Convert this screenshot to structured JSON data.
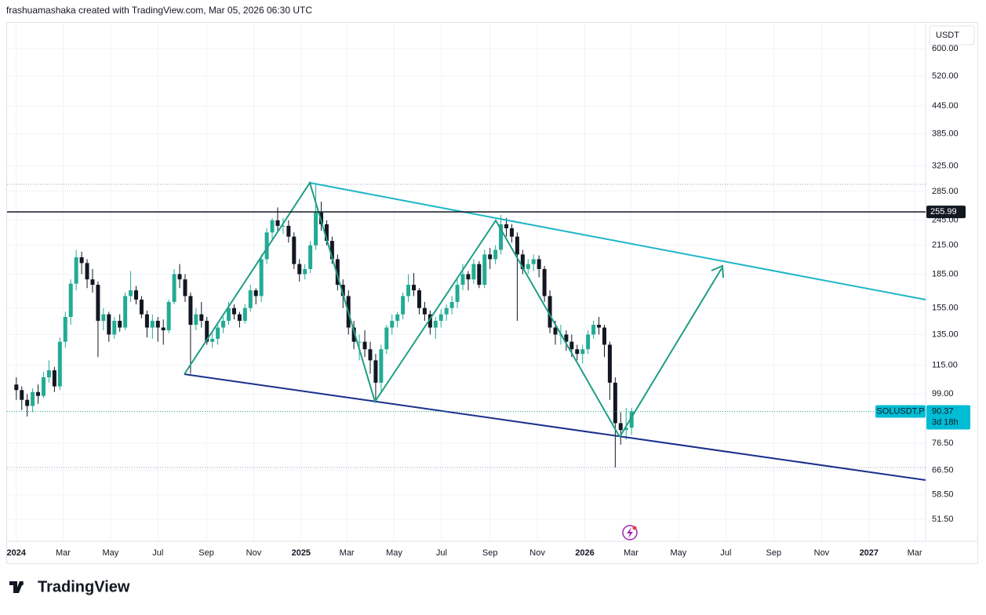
{
  "header": "frashuamashaka created with TradingView.com, Mar 05, 2026 06:30 UTC",
  "footer": "TradingView",
  "chart_data": {
    "type": "candlestick",
    "currency": "USDT",
    "symbol": "SOLUSDT.P",
    "last_price": 90.37,
    "countdown": "3d 18h",
    "price_line": 255.99,
    "up_color": "#22ab94",
    "down_color": "#131722",
    "log_scale": true,
    "grid": true,
    "ylim": [
      45.9,
      684
    ],
    "yticks": [
      {
        "value": 600,
        "label": "600.00"
      },
      {
        "value": 520,
        "label": "520.00"
      },
      {
        "value": 445,
        "label": "445.00"
      },
      {
        "value": 385,
        "label": "385.00"
      },
      {
        "value": 325,
        "label": "325.00"
      },
      {
        "value": 285,
        "label": "285.00"
      },
      {
        "value": 245,
        "label": "245.00"
      },
      {
        "value": 215,
        "label": "215.00"
      },
      {
        "value": 185,
        "label": "185.00"
      },
      {
        "value": 155,
        "label": "155.00"
      },
      {
        "value": 135,
        "label": "135.00"
      },
      {
        "value": 115,
        "label": "115.00"
      },
      {
        "value": 99,
        "label": "99.00"
      },
      {
        "value": 76.5,
        "label": "76.50"
      },
      {
        "value": 66.5,
        "label": "66.50"
      },
      {
        "value": 58.5,
        "label": "58.50"
      },
      {
        "value": 51.5,
        "label": "51.50"
      }
    ],
    "xlim": [
      -1.7,
      167
    ],
    "xticks": [
      {
        "value": 0,
        "label": "2024"
      },
      {
        "value": 8.6,
        "label": "Mar"
      },
      {
        "value": 17.3,
        "label": "May"
      },
      {
        "value": 26,
        "label": "Jul"
      },
      {
        "value": 34.9,
        "label": "Sep"
      },
      {
        "value": 43.6,
        "label": "Nov"
      },
      {
        "value": 52.3,
        "label": "2025"
      },
      {
        "value": 60.7,
        "label": "Mar"
      },
      {
        "value": 69.4,
        "label": "May"
      },
      {
        "value": 78.1,
        "label": "Jul"
      },
      {
        "value": 87,
        "label": "Sep"
      },
      {
        "value": 95.7,
        "label": "Nov"
      },
      {
        "value": 104.4,
        "label": "2026"
      },
      {
        "value": 112.9,
        "label": "Mar"
      },
      {
        "value": 121.6,
        "label": "May"
      },
      {
        "value": 130.3,
        "label": "Jul"
      },
      {
        "value": 139.1,
        "label": "Sep"
      },
      {
        "value": 147.9,
        "label": "Nov"
      },
      {
        "value": 156.6,
        "label": "2027"
      },
      {
        "value": 165,
        "label": "Mar"
      }
    ],
    "ohlc": [
      [
        104,
        108,
        96,
        101
      ],
      [
        101,
        103,
        91,
        96
      ],
      [
        96,
        99,
        88,
        93
      ],
      [
        93,
        102,
        90,
        100
      ],
      [
        100,
        104,
        94,
        98
      ],
      [
        98,
        111,
        97,
        108
      ],
      [
        108,
        118,
        105,
        112
      ],
      [
        112,
        114,
        100,
        103
      ],
      [
        103,
        133,
        101,
        130
      ],
      [
        130,
        152,
        126,
        148
      ],
      [
        148,
        180,
        142,
        176
      ],
      [
        176,
        210,
        170,
        202
      ],
      [
        202,
        208,
        185,
        196
      ],
      [
        196,
        200,
        172,
        180
      ],
      [
        180,
        190,
        168,
        175
      ],
      [
        175,
        178,
        120,
        145
      ],
      [
        145,
        155,
        138,
        150
      ],
      [
        150,
        152,
        130,
        135
      ],
      [
        135,
        148,
        132,
        145
      ],
      [
        145,
        150,
        137,
        140
      ],
      [
        140,
        168,
        138,
        165
      ],
      [
        165,
        188,
        160,
        170
      ],
      [
        170,
        174,
        158,
        162
      ],
      [
        162,
        165,
        147,
        150
      ],
      [
        150,
        153,
        133,
        140
      ],
      [
        140,
        150,
        132,
        145
      ],
      [
        145,
        148,
        130,
        140
      ],
      [
        140,
        146,
        128,
        138
      ],
      [
        138,
        162,
        136,
        160
      ],
      [
        160,
        190,
        158,
        185
      ],
      [
        185,
        195,
        172,
        180
      ],
      [
        180,
        185,
        160,
        165
      ],
      [
        165,
        168,
        110,
        142
      ],
      [
        142,
        155,
        138,
        150
      ],
      [
        150,
        160,
        140,
        145
      ],
      [
        145,
        148,
        128,
        130
      ],
      [
        130,
        136,
        126,
        132
      ],
      [
        132,
        142,
        128,
        140
      ],
      [
        140,
        148,
        136,
        145
      ],
      [
        145,
        160,
        142,
        155
      ],
      [
        155,
        158,
        146,
        150
      ],
      [
        150,
        152,
        140,
        145
      ],
      [
        145,
        158,
        143,
        155
      ],
      [
        155,
        175,
        152,
        170
      ],
      [
        170,
        172,
        158,
        165
      ],
      [
        165,
        205,
        160,
        200
      ],
      [
        200,
        235,
        195,
        230
      ],
      [
        230,
        248,
        220,
        245
      ],
      [
        245,
        262,
        232,
        238
      ],
      [
        238,
        248,
        228,
        238
      ],
      [
        238,
        245,
        218,
        225
      ],
      [
        225,
        230,
        190,
        195
      ],
      [
        195,
        200,
        178,
        185
      ],
      [
        185,
        195,
        180,
        190
      ],
      [
        190,
        220,
        186,
        215
      ],
      [
        215,
        295,
        210,
        255
      ],
      [
        255,
        270,
        232,
        240
      ],
      [
        240,
        245,
        215,
        220
      ],
      [
        220,
        225,
        195,
        200
      ],
      [
        200,
        205,
        170,
        175
      ],
      [
        175,
        180,
        155,
        165
      ],
      [
        165,
        170,
        135,
        140
      ],
      [
        140,
        145,
        125,
        130
      ],
      [
        130,
        135,
        118,
        130
      ],
      [
        130,
        138,
        120,
        125
      ],
      [
        125,
        130,
        110,
        118
      ],
      [
        118,
        122,
        96,
        105
      ],
      [
        105,
        128,
        100,
        125
      ],
      [
        125,
        142,
        122,
        140
      ],
      [
        140,
        150,
        135,
        145
      ],
      [
        145,
        152,
        140,
        150
      ],
      [
        150,
        168,
        146,
        165
      ],
      [
        165,
        185,
        160,
        175
      ],
      [
        175,
        186,
        165,
        170
      ],
      [
        170,
        172,
        150,
        155
      ],
      [
        155,
        160,
        145,
        150
      ],
      [
        150,
        153,
        135,
        140
      ],
      [
        140,
        148,
        132,
        145
      ],
      [
        145,
        154,
        140,
        150
      ],
      [
        150,
        158,
        145,
        155
      ],
      [
        155,
        165,
        150,
        160
      ],
      [
        160,
        180,
        155,
        175
      ],
      [
        175,
        195,
        170,
        185
      ],
      [
        185,
        188,
        170,
        180
      ],
      [
        180,
        200,
        176,
        195
      ],
      [
        195,
        198,
        172,
        175
      ],
      [
        175,
        210,
        172,
        205
      ],
      [
        205,
        212,
        190,
        200
      ],
      [
        200,
        215,
        195,
        210
      ],
      [
        210,
        252,
        205,
        240
      ],
      [
        240,
        248,
        225,
        235
      ],
      [
        235,
        240,
        218,
        225
      ],
      [
        225,
        230,
        145,
        205
      ],
      [
        205,
        210,
        185,
        190
      ],
      [
        190,
        200,
        185,
        195
      ],
      [
        195,
        205,
        188,
        200
      ],
      [
        200,
        204,
        182,
        190
      ],
      [
        190,
        193,
        160,
        165
      ],
      [
        165,
        170,
        136,
        140
      ],
      [
        140,
        145,
        128,
        135
      ],
      [
        135,
        142,
        128,
        135
      ],
      [
        135,
        138,
        124,
        130
      ],
      [
        130,
        135,
        120,
        125
      ],
      [
        125,
        128,
        118,
        122
      ],
      [
        122,
        128,
        116,
        125
      ],
      [
        125,
        138,
        122,
        135
      ],
      [
        135,
        145,
        132,
        142
      ],
      [
        142,
        148,
        135,
        140
      ],
      [
        140,
        142,
        120,
        128
      ],
      [
        128,
        130,
        96,
        105
      ],
      [
        105,
        108,
        67.5,
        85
      ],
      [
        85,
        90,
        76,
        82
      ],
      [
        82,
        92,
        78,
        83
      ],
      [
        83,
        92,
        80,
        90.37
      ]
    ]
  }
}
